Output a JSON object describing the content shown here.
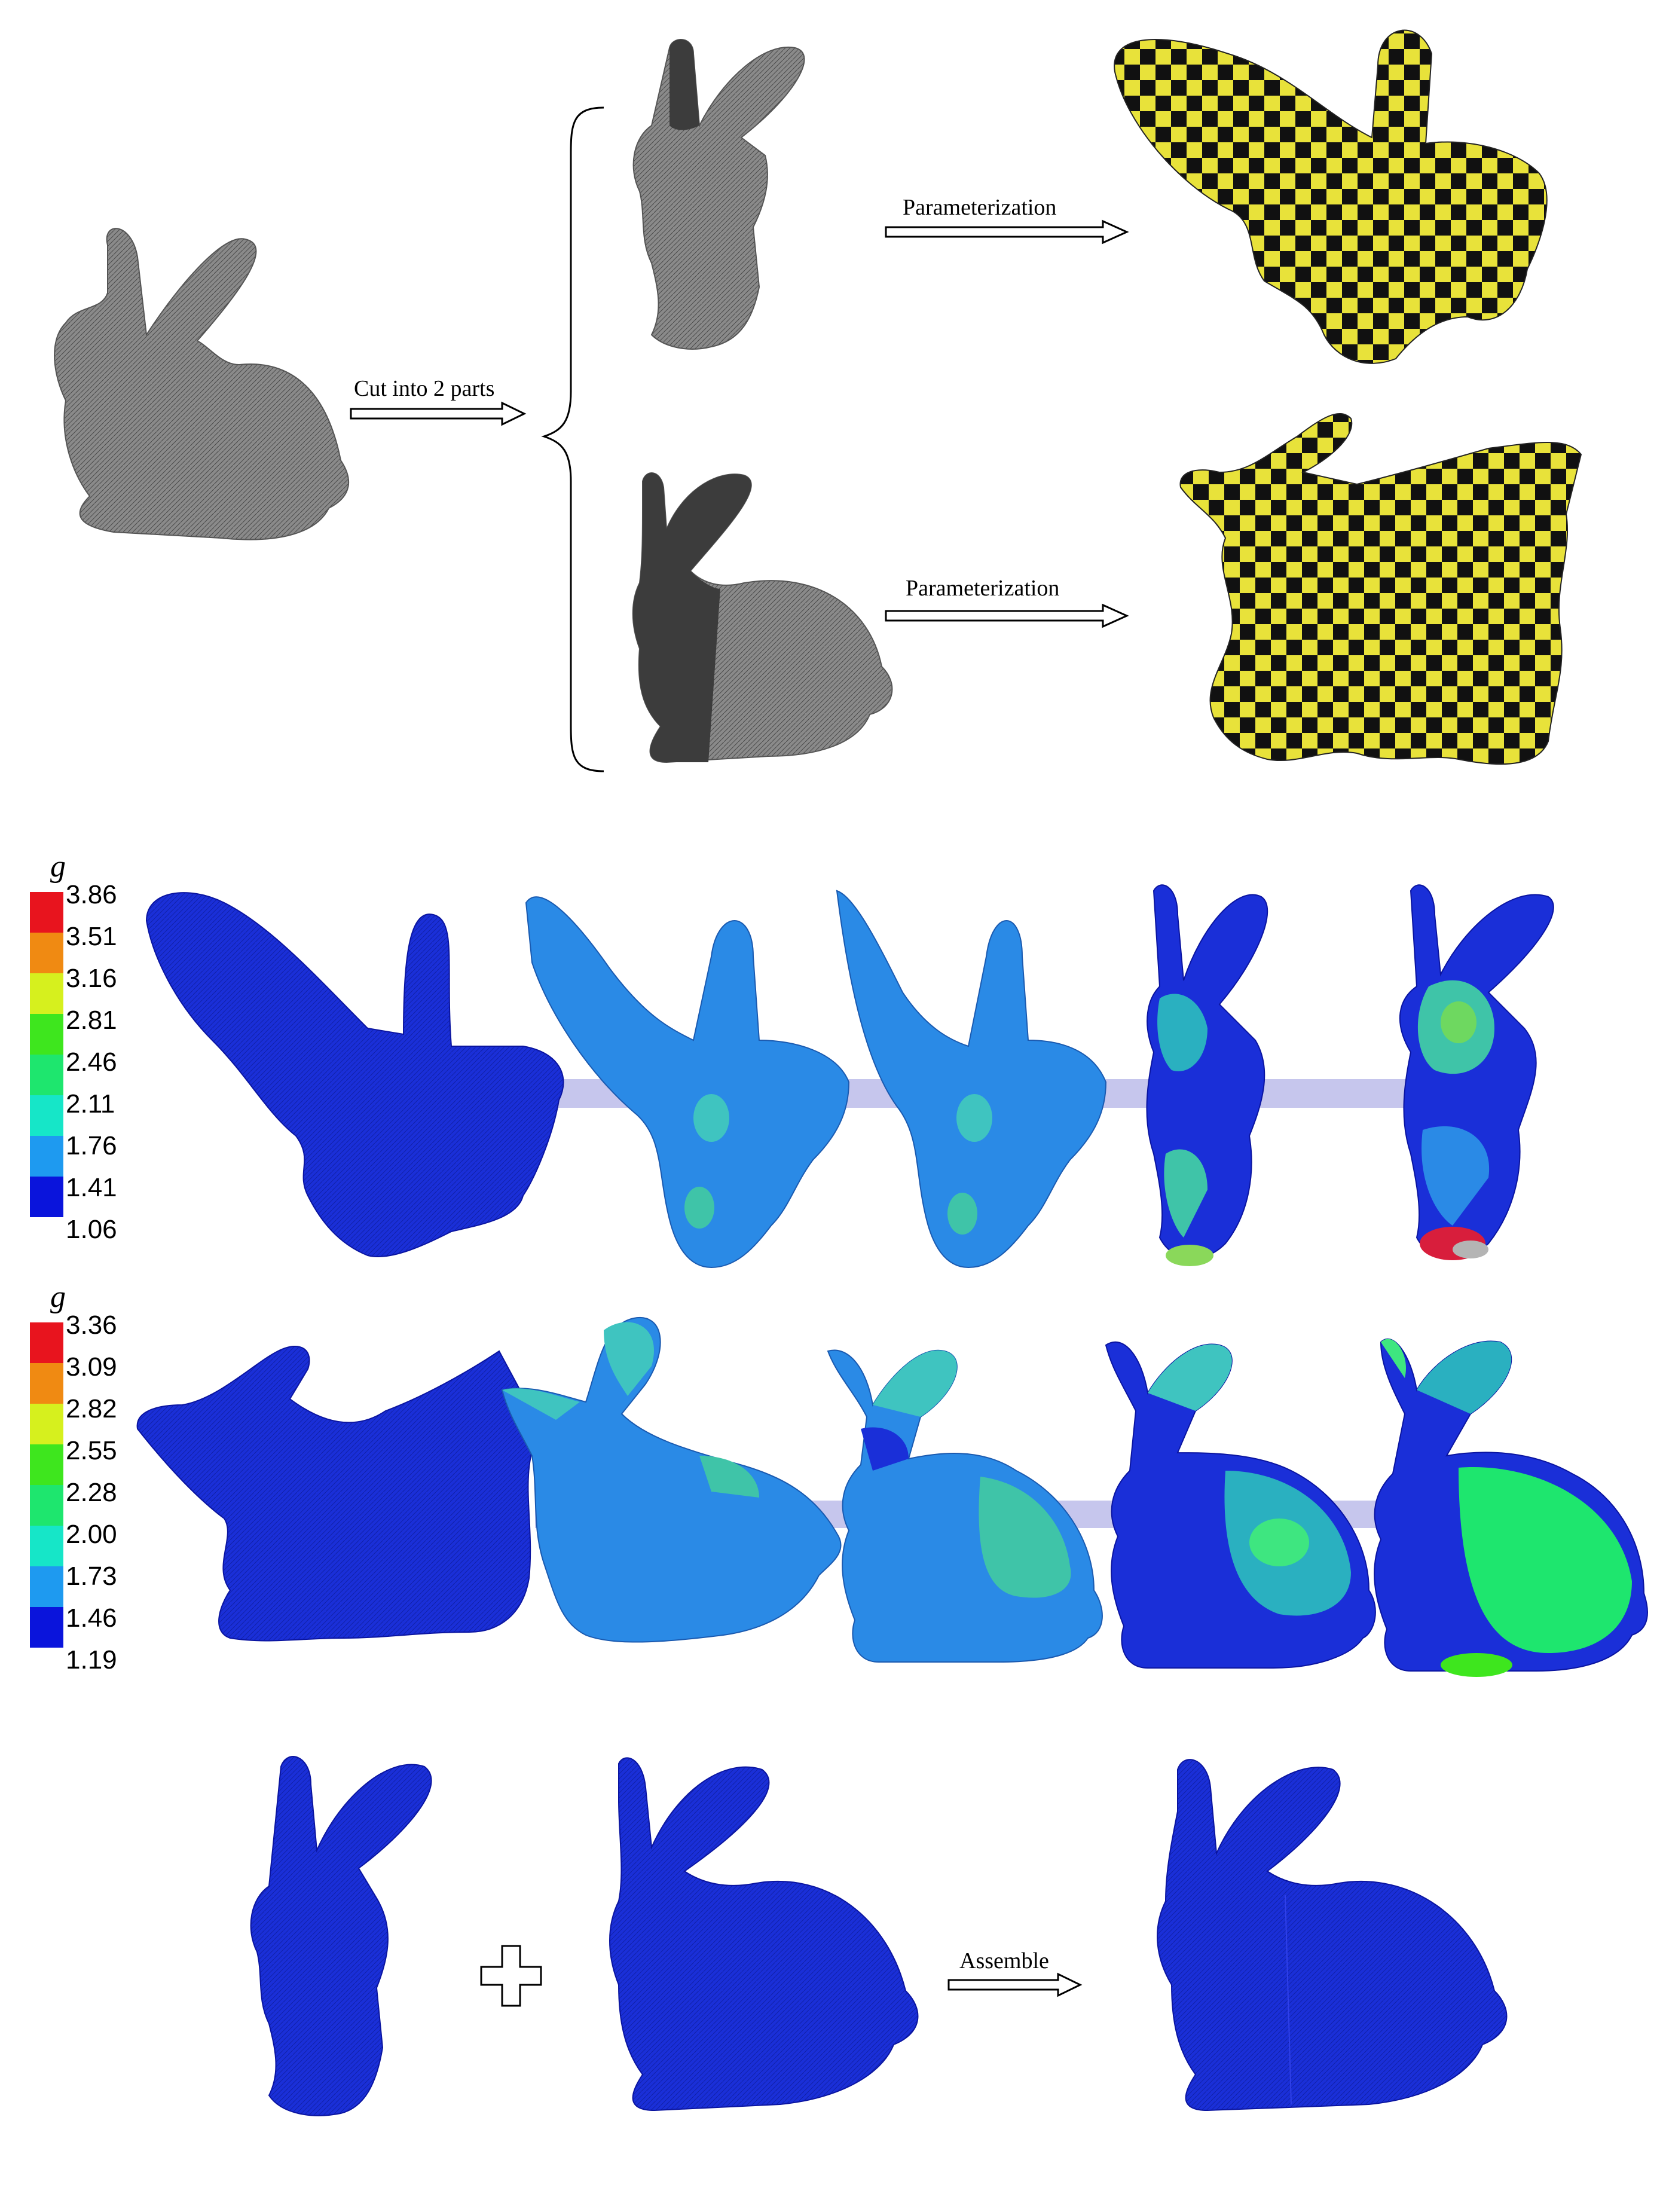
{
  "top": {
    "cut_label": "Cut into 2 parts",
    "param_label_1": "Parameterization",
    "param_label_2": "Parameterization"
  },
  "legend_1": {
    "title": "g",
    "ticks": [
      "3.86",
      "3.51",
      "3.16",
      "2.81",
      "2.46",
      "2.11",
      "1.76",
      "1.41",
      "1.06"
    ]
  },
  "legend_2": {
    "title": "g",
    "ticks": [
      "3.36",
      "3.09",
      "2.82",
      "2.55",
      "2.28",
      "2.00",
      "1.73",
      "1.46",
      "1.19"
    ]
  },
  "bottom": {
    "assemble_label": "Assemble"
  },
  "colors": {
    "scale": [
      "#e8141e",
      "#f08a12",
      "#d6f01e",
      "#3ee61e",
      "#1ee66e",
      "#16e6c8",
      "#1e9af0",
      "#1464f0",
      "#0a14dc"
    ],
    "mesh_gray": "#6e6e6e",
    "mesh_dark": "#3c3c3c",
    "mesh_blue": "#1a2fd8",
    "mesh_mid_blue": "#2a8ae6",
    "checker_yellow": "#e8e23a",
    "checker_black": "#111111",
    "connector": "#b8b8e8"
  }
}
